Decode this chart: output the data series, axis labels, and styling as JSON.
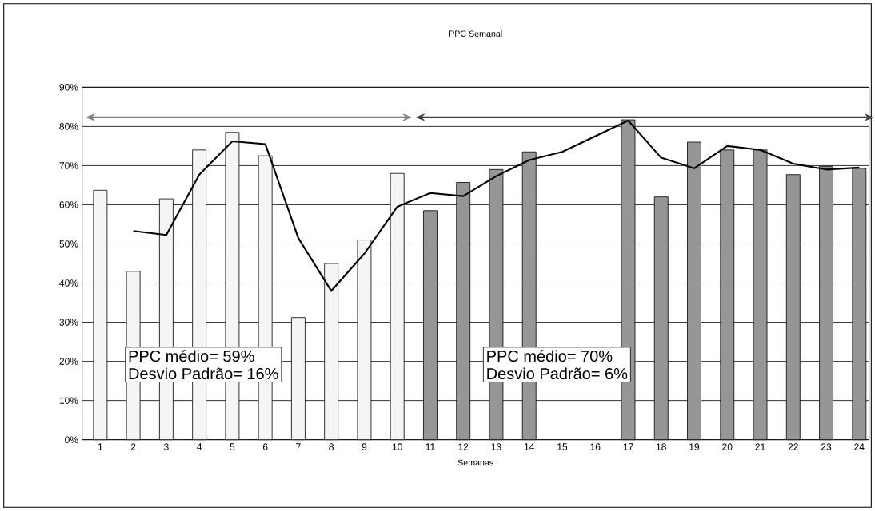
{
  "chart_data": {
    "type": "bar",
    "title": "PPC Semanal",
    "xlabel": "Semanas",
    "categories": [
      "1",
      "2",
      "3",
      "4",
      "5",
      "6",
      "7",
      "8",
      "9",
      "10",
      "11",
      "12",
      "13",
      "14",
      "15",
      "16",
      "17",
      "18",
      "19",
      "20",
      "21",
      "22",
      "23",
      "24"
    ],
    "series": [
      {
        "color": "#f5f5f5",
        "values": [
          63.7,
          43,
          61.5,
          74,
          78.5,
          72.5,
          31.2,
          45,
          51,
          68,
          null,
          null,
          null,
          null,
          null,
          null,
          null,
          null,
          null,
          null,
          null,
          null,
          null,
          null
        ]
      },
      {
        "color": "#969696",
        "values": [
          null,
          null,
          null,
          null,
          null,
          null,
          null,
          null,
          null,
          null,
          58.5,
          65.7,
          69,
          73.5,
          null,
          null,
          81.7,
          62,
          76,
          74,
          74,
          67.7,
          69.8,
          69.3
        ]
      },
      {
        "type": "line",
        "color": "#000000",
        "values": [
          null,
          53.3,
          52.3,
          67.7,
          76.2,
          75.5,
          51.5,
          38,
          47.5,
          59.5,
          63,
          62.2,
          67.3,
          71.4,
          73.5,
          77.5,
          81.5,
          72,
          69.3,
          75,
          74,
          70.5,
          69,
          69.5
        ]
      }
    ],
    "ylim": [
      0,
      90
    ],
    "yticks": [
      {
        "value": 0,
        "label": "0%"
      },
      {
        "value": 10,
        "label": "10%"
      },
      {
        "value": 20,
        "label": "20%"
      },
      {
        "value": 30,
        "label": "30%"
      },
      {
        "value": 40,
        "label": "40%"
      },
      {
        "value": 50,
        "label": "50%"
      },
      {
        "value": 60,
        "label": "60%"
      },
      {
        "value": 70,
        "label": "70%"
      },
      {
        "value": 80,
        "label": "80%"
      },
      {
        "value": 90,
        "label": "90%"
      }
    ],
    "grid": "y",
    "annotations": [
      "PPC médio= 59%",
      "Desvio Padrão= 16%",
      "PPC médio= 70%",
      "Desvio Padrão= 6%"
    ]
  }
}
